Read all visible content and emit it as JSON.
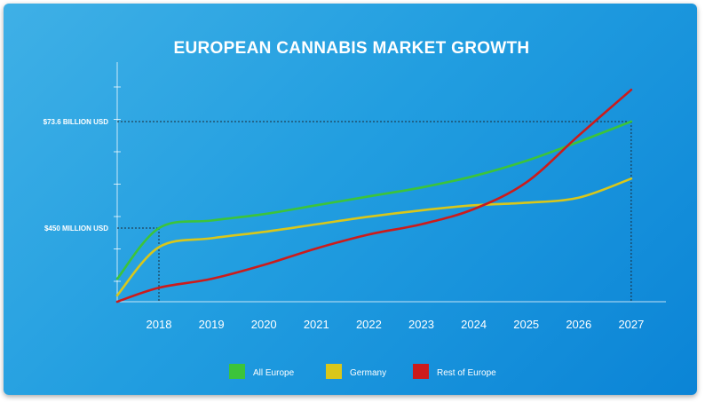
{
  "chart_data": {
    "type": "line",
    "title": "EUROPEAN CANNABIS MARKET GROWTH",
    "xlabel": "",
    "ylabel": "",
    "x": [
      "2018",
      "2019",
      "2020",
      "2021",
      "2022",
      "2023",
      "2024",
      "2025",
      "2026",
      "2027"
    ],
    "y_scale": "relative (no numeric tick labels)",
    "annotations": [
      {
        "label": "$450 MILLION USD",
        "x": "2018",
        "series": "All Europe"
      },
      {
        "label": "$73.6 BILLION USD",
        "x": "2027",
        "series": "All Europe"
      }
    ],
    "series": [
      {
        "name": "All Europe",
        "color": "#3cc43a",
        "values": [
          58,
          64,
          69,
          76,
          83,
          90,
          99,
          111,
          126,
          142
        ]
      },
      {
        "name": "Germany",
        "color": "#d9c71a",
        "values": [
          43,
          50,
          55,
          61,
          67,
          72,
          76,
          78,
          82,
          97
        ]
      },
      {
        "name": "Rest of Europe",
        "color": "#cc1b1b",
        "values": [
          11,
          18,
          29,
          42,
          53,
          61,
          73,
          94,
          131,
          167
        ]
      }
    ],
    "grid": false,
    "legend": "bottom"
  }
}
